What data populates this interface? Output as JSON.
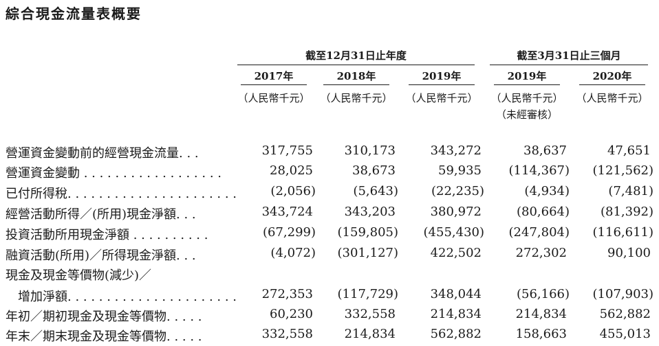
{
  "title": "綜合現金流量表概要",
  "header": {
    "group1": "截至12月31日止年度",
    "group2": "截至3月31日止三個月",
    "years": [
      "2017年",
      "2018年",
      "2019年",
      "2019年",
      "2020年"
    ],
    "units": [
      "（人民幣千元）",
      "（人民幣千元）",
      "（人民幣千元）",
      "（人民幣千元）",
      "（人民幣千元）"
    ],
    "unaudited": "（未經審核）"
  },
  "rows": [
    {
      "label": "營運資金變動前的經營現金流量. . .",
      "values": [
        "317,755",
        "310,173",
        "343,272",
        "38,637",
        "47,651"
      ]
    },
    {
      "label": "營運資金變動 . . . . . . . . . . . . . . . . . .",
      "values": [
        "28,025",
        "38,673",
        "59,935",
        "(114,367)",
        "(121,562)"
      ]
    },
    {
      "label": "已付所得稅. . . . . . . . . . . . . . . . . . . . . .",
      "values": [
        "(2,056)",
        "(5,643)",
        "(22,235)",
        "(4,934)",
        "(7,481)"
      ]
    },
    {
      "label": "經營活動所得／(所用)現金淨額. . .",
      "values": [
        "343,724",
        "343,203",
        "380,972",
        "(80,664)",
        "(81,392)"
      ]
    },
    {
      "label": "投資活動所用現金淨額 . . . . . . . . . .",
      "values": [
        "(67,299)",
        "(159,805)",
        "(455,430)",
        "(247,804)",
        "(116,611)"
      ]
    },
    {
      "label": "融資活動(所用)／所得現金淨額. . .",
      "values": [
        "(4,072)",
        "(301,127)",
        "422,502",
        "272,302",
        "90,100"
      ]
    },
    {
      "label": "現金及現金等價物(減少)／",
      "values": [
        "",
        "",
        "",
        "",
        ""
      ]
    },
    {
      "label": "　增加淨額. . . . . . . . . . . . . . . . . . . . . .",
      "values": [
        "272,353",
        "(117,729)",
        "348,044",
        "(56,166)",
        "(107,903)"
      ]
    },
    {
      "label": "年初／期初現金及現金等價物. . . . .",
      "values": [
        "60,230",
        "332,558",
        "214,834",
        "214,834",
        "562,882"
      ]
    },
    {
      "label": "年末／期末現金及現金等價物. . . . .",
      "values": [
        "332,558",
        "214,834",
        "562,882",
        "158,663",
        "455,013"
      ]
    }
  ]
}
